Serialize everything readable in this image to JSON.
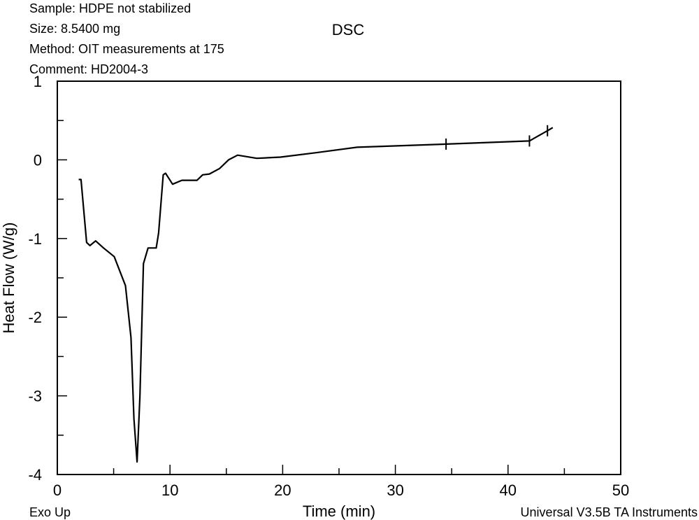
{
  "header": {
    "sample": "Sample: HDPE not stabilized",
    "size": "Size: 8.5400 mg",
    "method": "Method: OIT measurements at 175",
    "comment": "Comment: HD2004-3"
  },
  "footer": {
    "exo": "Exo Up",
    "software": "Universal V3.5B TA Instruments"
  },
  "chart_data": {
    "type": "line",
    "title": "DSC",
    "xlabel": "Time (min)",
    "ylabel": "Heat Flow (W/g)",
    "xlim": [
      0,
      50
    ],
    "ylim": [
      -4,
      1
    ],
    "xticks": [
      "0",
      "10",
      "20",
      "30",
      "40",
      "50"
    ],
    "yticks": [
      "1",
      "0",
      "-1",
      "-2",
      "-3",
      "-4"
    ],
    "grid": false,
    "line_color": "#000000",
    "x": [
      1.9,
      2.1,
      2.6,
      2.9,
      3.4,
      4.1,
      5.05,
      6.05,
      6.54,
      6.8,
      7.08,
      7.33,
      7.64,
      8.05,
      8.78,
      8.99,
      9.4,
      9.6,
      10.23,
      11.06,
      12.4,
      12.9,
      13.5,
      14.4,
      15.2,
      16.0,
      17.7,
      19.8,
      22.9,
      26.6,
      34.5,
      41.9,
      43.5,
      43.97
    ],
    "y": [
      -0.25,
      -0.25,
      -1.05,
      -1.09,
      -1.03,
      -1.12,
      -1.23,
      -1.6,
      -2.26,
      -3.29,
      -3.84,
      -3.0,
      -1.32,
      -1.12,
      -1.12,
      -0.93,
      -0.19,
      -0.17,
      -0.31,
      -0.26,
      -0.26,
      -0.19,
      -0.18,
      -0.11,
      0.0,
      0.06,
      0.02,
      0.035,
      0.09,
      0.16,
      0.2,
      0.24,
      0.37,
      0.41
    ],
    "markers_x": [
      34.5,
      41.9,
      43.5
    ]
  }
}
